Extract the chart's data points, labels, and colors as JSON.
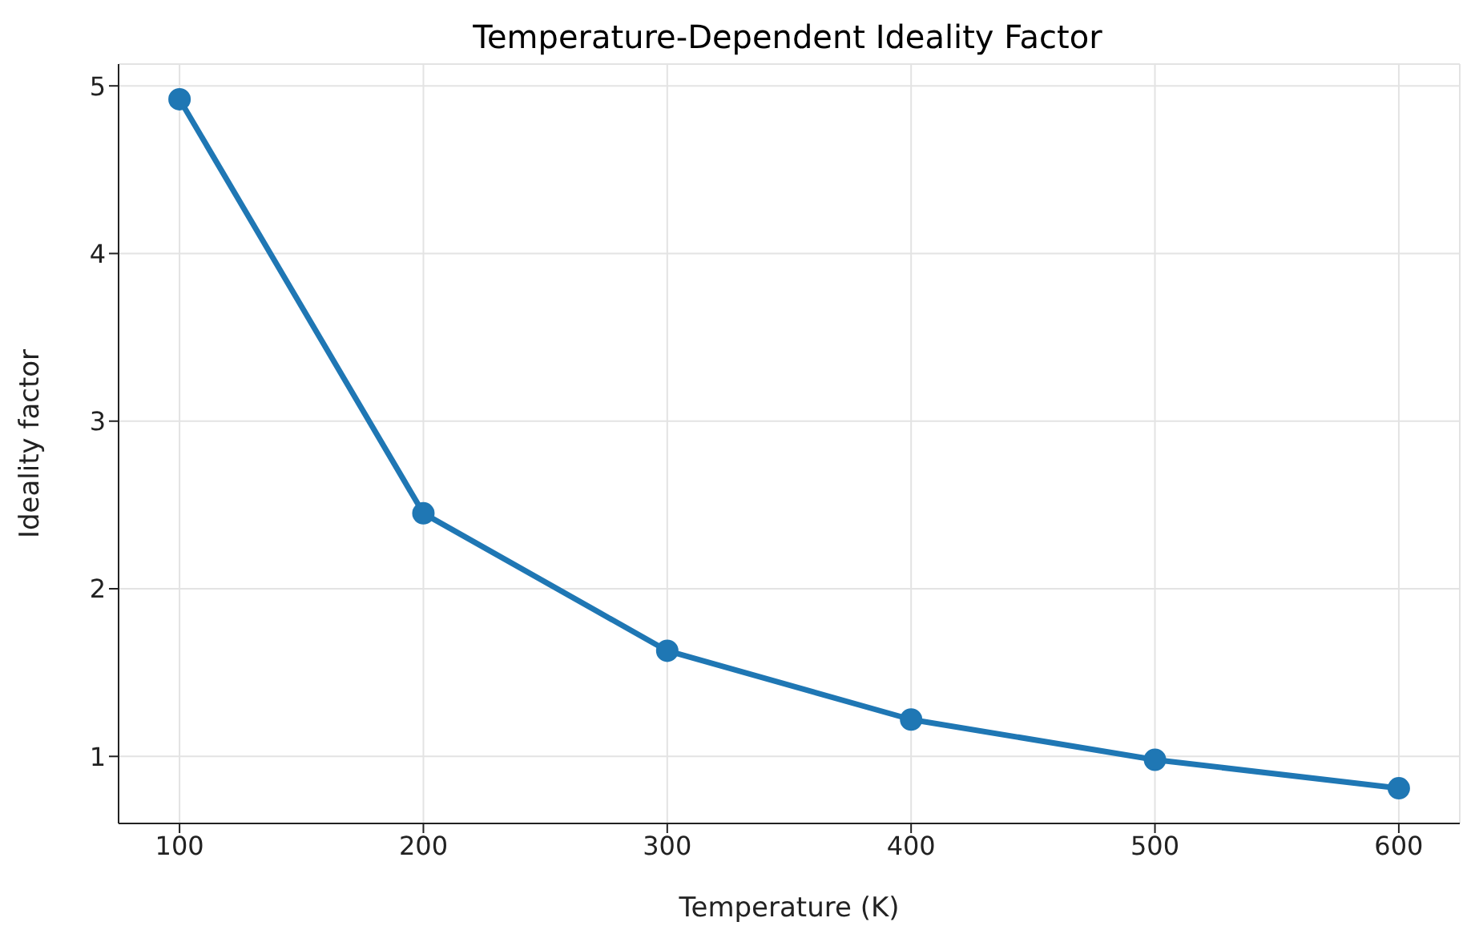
{
  "chart_data": {
    "type": "line",
    "title": "Temperature-Dependent Ideality Factor",
    "xlabel": "Temperature (K)",
    "ylabel": "Ideality factor",
    "x": [
      100,
      200,
      300,
      400,
      500,
      600
    ],
    "series": [
      {
        "color": "#1f77b4",
        "values": [
          4.92,
          2.45,
          1.63,
          1.22,
          0.98,
          0.81
        ]
      }
    ],
    "xlim": [
      75,
      625
    ],
    "xticks": [
      100,
      200,
      300,
      400,
      500,
      600
    ],
    "ylim": [
      0.6,
      5.13
    ],
    "yticks": [
      1,
      2,
      3,
      4,
      5
    ],
    "grid": true,
    "marker": "circle",
    "line_style": "solid",
    "legend": false
  }
}
